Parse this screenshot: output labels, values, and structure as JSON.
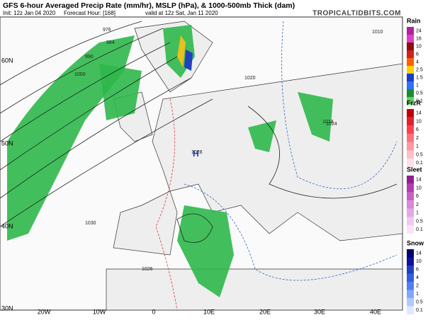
{
  "header": {
    "title": "GFS 6-hour Averaged Precip Rate (mm/hr), MSLP (hPa), & 1000-500mb Thick (dam)",
    "init": "Init: 12z Jan 04 2020",
    "forecast": "Forecast Hour: [168]",
    "valid": "valid at 12z Sat, Jan 11 2020",
    "site": "TROPICALTIDBITS.COM"
  },
  "map": {
    "lat_labels": [
      "60N",
      "50N",
      "40N",
      "30N"
    ],
    "lon_labels": [
      "20W",
      "10W",
      "0",
      "10E",
      "20E",
      "30E",
      "40E"
    ],
    "contour_labels": [
      "1020",
      "1028",
      "1024",
      "1030",
      "1026",
      "1018",
      "1010",
      "1000",
      "990",
      "984",
      "976",
      "H"
    ]
  },
  "legend": [
    {
      "title": "Rain",
      "labels": [
        "24",
        "16",
        "10",
        "6",
        "4",
        "2.5",
        "1.5",
        "1",
        "0.5",
        "0.1"
      ]
    },
    {
      "title": "FrzR",
      "labels": [
        "14",
        "10",
        "6",
        "2",
        "1",
        "0.5",
        "0.1"
      ]
    },
    {
      "title": "Sleet",
      "labels": [
        "14",
        "10",
        "6",
        "2",
        "1",
        "0.5",
        "0.1"
      ]
    },
    {
      "title": "Snow",
      "labels": [
        "14",
        "10",
        "6",
        "4",
        "2",
        "1",
        "0.5",
        "0.1"
      ]
    }
  ]
}
